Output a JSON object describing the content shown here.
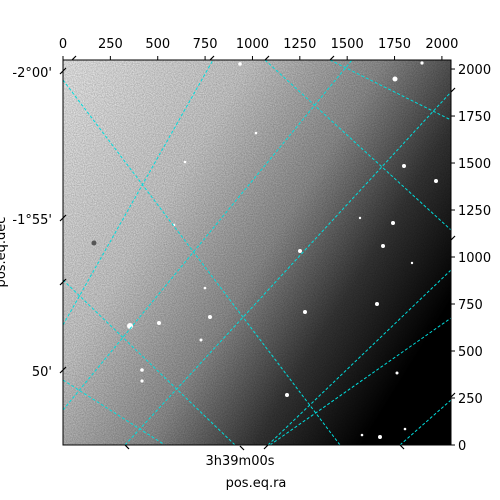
{
  "chart_data": {
    "type": "heatmap",
    "title": "",
    "xlabel": "pos.eq.ra",
    "ylabel": "pos.eq.dec",
    "pixel_axes": {
      "x_ticks": [
        "0",
        "250",
        "500",
        "750",
        "1000",
        "1250",
        "1500",
        "1750",
        "2000"
      ],
      "y_ticks": [
        "0",
        "250",
        "500",
        "750",
        "1000",
        "1250",
        "1500",
        "1750",
        "2000"
      ],
      "xlim": [
        0,
        2048
      ],
      "ylim": [
        0,
        2048
      ]
    },
    "world_axes": {
      "ra_tick_labels": [
        "3h39m00s"
      ],
      "dec_tick_labels": [
        "-2°00'",
        "-1°55'",
        "50'"
      ]
    },
    "grid": true,
    "grid_color": "#00dddd",
    "colormap": "gray",
    "image_description": "greyscale sky image, bright upper-left fading to dark right edge, scattered point sources"
  }
}
